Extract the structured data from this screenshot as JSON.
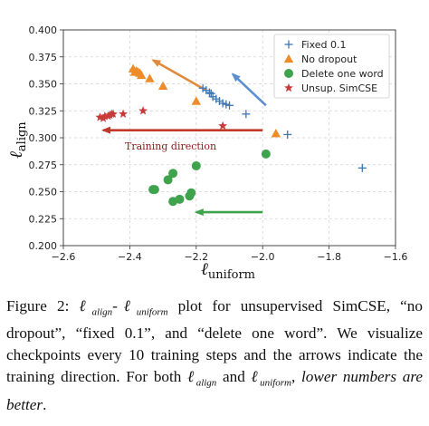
{
  "chart_data": {
    "type": "scatter",
    "xlabel_base": "ℓ",
    "xlabel_sub": "uniform",
    "ylabel_base": "ℓ",
    "ylabel_sub": "align",
    "xlim": [
      -2.6,
      -1.6
    ],
    "ylim": [
      0.2,
      0.4
    ],
    "xticks": [
      -2.6,
      -2.4,
      -2.2,
      -2.0,
      -1.8,
      -1.6
    ],
    "xtick_labels": [
      "−2.6",
      "−2.4",
      "−2.2",
      "−2.0",
      "−1.8",
      "−1.6"
    ],
    "yticks": [
      0.2,
      0.225,
      0.25,
      0.275,
      0.3,
      0.325,
      0.35,
      0.375,
      0.4
    ],
    "ytick_labels": [
      "0.200",
      "0.225",
      "0.250",
      "0.275",
      "0.300",
      "0.325",
      "0.350",
      "0.375",
      "0.400"
    ],
    "grid": true,
    "legend_position": "top-right",
    "series": [
      {
        "name": "Fixed 0.1",
        "marker": "plus",
        "color": "#3a78b5",
        "points": [
          [
            -2.18,
            0.346
          ],
          [
            -2.17,
            0.344
          ],
          [
            -2.16,
            0.342
          ],
          [
            -2.155,
            0.341
          ],
          [
            -2.15,
            0.338
          ],
          [
            -2.14,
            0.336
          ],
          [
            -2.13,
            0.334
          ],
          [
            -2.12,
            0.332
          ],
          [
            -2.11,
            0.331
          ],
          [
            -2.1,
            0.33
          ],
          [
            -2.05,
            0.322
          ],
          [
            -1.925,
            0.303
          ],
          [
            -1.7,
            0.272
          ]
        ]
      },
      {
        "name": "No dropout",
        "marker": "triangle",
        "color": "#ef8c2a",
        "points": [
          [
            -2.39,
            0.364
          ],
          [
            -2.385,
            0.361
          ],
          [
            -2.38,
            0.362
          ],
          [
            -2.375,
            0.361
          ],
          [
            -2.37,
            0.36
          ],
          [
            -2.365,
            0.358
          ],
          [
            -2.34,
            0.355
          ],
          [
            -2.3,
            0.348
          ],
          [
            -2.2,
            0.334
          ],
          [
            -1.96,
            0.304
          ]
        ]
      },
      {
        "name": "Delete one word",
        "marker": "circle",
        "color": "#3fa34d",
        "points": [
          [
            -2.2,
            0.274
          ],
          [
            -2.27,
            0.267
          ],
          [
            -2.285,
            0.261
          ],
          [
            -2.33,
            0.252
          ],
          [
            -2.325,
            0.252
          ],
          [
            -2.215,
            0.249
          ],
          [
            -2.22,
            0.246
          ],
          [
            -2.25,
            0.243
          ],
          [
            -2.27,
            0.241
          ],
          [
            -1.99,
            0.285
          ]
        ]
      },
      {
        "name": "Unsup. SimCSE",
        "marker": "star",
        "color": "#c93a3a",
        "points": [
          [
            -2.49,
            0.319
          ],
          [
            -2.48,
            0.318
          ],
          [
            -2.475,
            0.32
          ],
          [
            -2.465,
            0.32
          ],
          [
            -2.46,
            0.321
          ],
          [
            -2.455,
            0.322
          ],
          [
            -2.45,
            0.322
          ],
          [
            -2.42,
            0.322
          ],
          [
            -2.36,
            0.325
          ],
          [
            -2.12,
            0.311
          ]
        ]
      }
    ],
    "annotations": [
      {
        "text": "Training direction"
      }
    ],
    "arrows": [
      {
        "color": "#c0392b",
        "from": [
          -2.0,
          0.307
        ],
        "to": [
          -2.48,
          0.307
        ]
      },
      {
        "color": "#e08a3c",
        "from": [
          -2.17,
          0.344
        ],
        "to": [
          -2.33,
          0.372
        ]
      },
      {
        "color": "#5b8fd0",
        "from": [
          -1.99,
          0.33
        ],
        "to": [
          -2.09,
          0.359
        ]
      },
      {
        "color": "#3fa34d",
        "from": [
          -2.0,
          0.231
        ],
        "to": [
          -2.2,
          0.231
        ]
      }
    ]
  },
  "caption": {
    "figure_label": "Figure 2:",
    "l_symbol": "ℓ",
    "sub_align": "align",
    "sub_uniform": "uniform",
    "dash": "-",
    "part1": " plot for unsupervised SimCSE, “no dropout”, “fixed 0.1”, and “delete one word”. We visualize checkpoints every 10 training steps and the arrows indicate the training direction. For both ",
    "and_word": " and ",
    "comma": ", ",
    "italic_text": "lower numbers are better",
    "end": "."
  }
}
